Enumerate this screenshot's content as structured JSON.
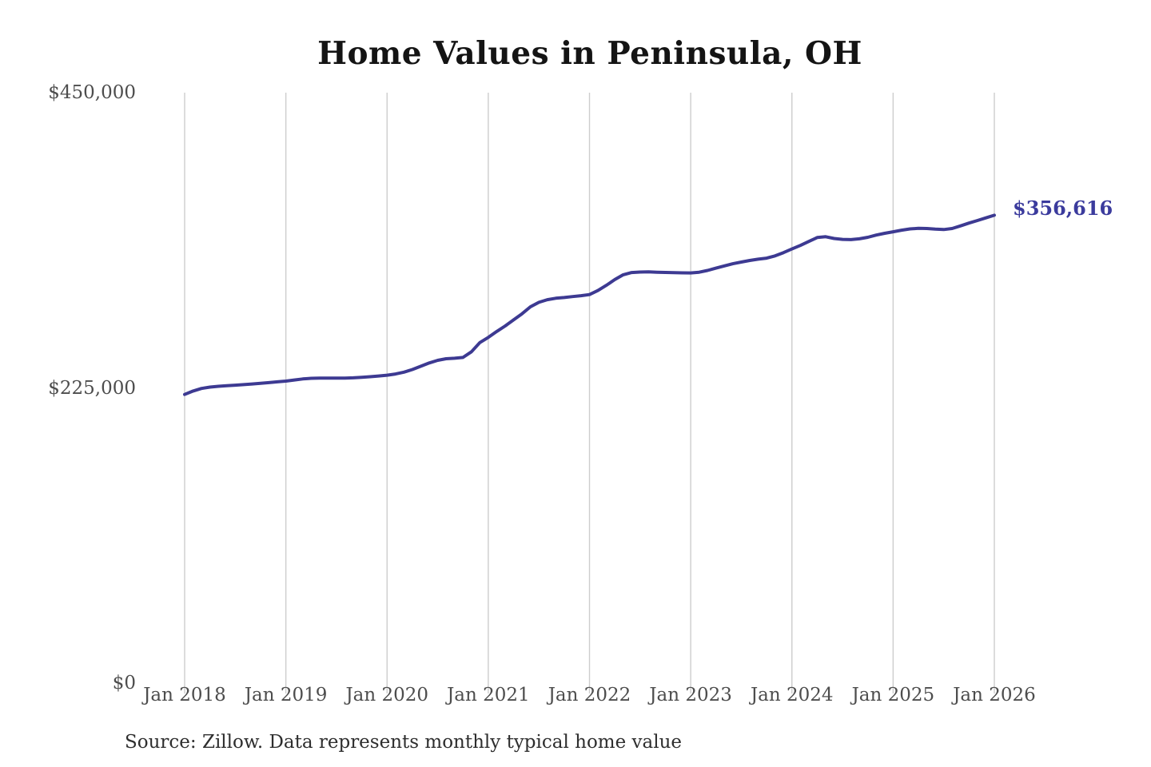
{
  "chart": {
    "title": "Home Values in Peninsula, OH",
    "end_label": "$356,616",
    "source": "Source: Zillow. Data represents monthly typical home value",
    "colors": {
      "background": "#ffffff",
      "line": "#3d3a92",
      "end_label": "#3b3b9d",
      "gridline": "#cdcdcd",
      "axis_text": "#4d4d4d",
      "title_text": "#141414",
      "source_text": "#2e2e2e"
    }
  },
  "chart_data": {
    "type": "line",
    "title": "Home Values in Peninsula, OH",
    "xlabel": "",
    "ylabel": "",
    "ylim": [
      0,
      450000
    ],
    "grid": "vertical-only",
    "legend": "none",
    "x_start": "Jan 2018",
    "x_end": "Jan 2026",
    "points_per_month": 1,
    "x_tick_labels": [
      "Jan 2018",
      "Jan 2019",
      "Jan 2020",
      "Jan 2021",
      "Jan 2022",
      "Jan 2023",
      "Jan 2024",
      "Jan 2025",
      "Jan 2026"
    ],
    "y_tick_labels": [
      "$0",
      "$225,000",
      "$450,000"
    ],
    "y_tick_values": [
      0,
      225000,
      450000
    ],
    "final_value": 356616,
    "annotations": [
      {
        "text": "$356,616",
        "position": "end-of-line"
      }
    ],
    "series": [
      {
        "name": "Monthly typical home value",
        "monthly_values": [
          220000,
          222600,
          224600,
          225600,
          226200,
          226700,
          227100,
          227500,
          228000,
          228500,
          229000,
          229600,
          230200,
          231000,
          231800,
          232300,
          232500,
          232400,
          232400,
          232500,
          232700,
          233100,
          233500,
          234100,
          234700,
          235600,
          237000,
          239000,
          241500,
          244000,
          246000,
          247200,
          247600,
          248200,
          252500,
          259500,
          263500,
          268000,
          272200,
          276800,
          281500,
          286800,
          290200,
          292200,
          293300,
          293900,
          294600,
          295300,
          296100,
          299200,
          303200,
          307600,
          311200,
          312900,
          313300,
          313400,
          313200,
          313000,
          312800,
          312700,
          312600,
          313200,
          314500,
          316300,
          318000,
          319600,
          320900,
          322100,
          323100,
          323900,
          325600,
          328100,
          330900,
          333600,
          336600,
          339600,
          340200,
          338900,
          338200,
          338000,
          338600,
          339800,
          341500,
          342800,
          344000,
          345200,
          346200,
          346600,
          346500,
          346000,
          345700,
          346500,
          348500,
          350600,
          352600,
          354600,
          356616
        ]
      }
    ]
  }
}
